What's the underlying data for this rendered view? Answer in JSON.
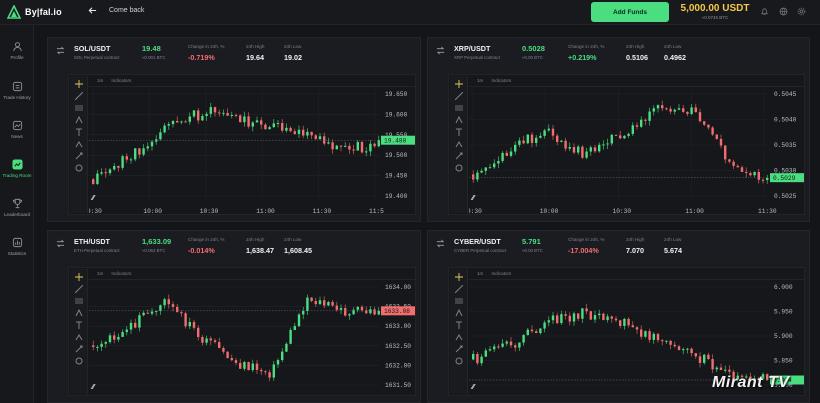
{
  "app": {
    "name": "By|fal.io",
    "back_label": "Come back",
    "add_funds_label": "Add Funds",
    "balance": "5,000.00 USDT",
    "balance_sub": "≈0.0745 BTC"
  },
  "sidebar": {
    "items": [
      {
        "label": "Profile",
        "icon": "user-icon",
        "active": false
      },
      {
        "label": "Trade History",
        "icon": "history-icon",
        "active": false
      },
      {
        "label": "News",
        "icon": "news-icon",
        "active": false
      },
      {
        "label": "Trading Room",
        "icon": "chart-icon",
        "active": true
      },
      {
        "label": "Leaderboard",
        "icon": "trophy-icon",
        "active": false
      },
      {
        "label": "Statistics",
        "icon": "stats-icon",
        "active": false
      }
    ]
  },
  "labels": {
    "change": "Change in 24h, %",
    "high": "24h High",
    "low": "24h Low",
    "interval": "1m",
    "indicators": "Indicators"
  },
  "colors": {
    "up": "#4ade80",
    "down": "#f26d6d",
    "accent": "#4ade80",
    "balance": "#f5c84c"
  },
  "panels": [
    {
      "symbol": "SOL/USDT",
      "sub": "SOL Perpetual contract",
      "price": "19.48",
      "price_sub": "≈0.001 BTC",
      "change": "-0.719%",
      "change_dir": "down",
      "high": "19.64",
      "low": "19.02",
      "chart": {
        "ticks": [
          "19.650",
          "19.600",
          "19.550",
          "19.500",
          "19.450",
          "19.400"
        ],
        "x_labels": [
          "9:30",
          "10:00",
          "10:30",
          "11:00",
          "11:30",
          "11:5"
        ],
        "last": "19.480",
        "last_dir": "up",
        "seed": 11,
        "trend": [
          0.85,
          0.6,
          0.25,
          0.15,
          0.3,
          0.35,
          0.55,
          0.5
        ]
      }
    },
    {
      "symbol": "XRP/USDT",
      "sub": "XRP Perpetual contract",
      "price": "0.5028",
      "price_sub": "≈0.00 BTC",
      "change": "+0.219%",
      "change_dir": "up",
      "high": "0.5106",
      "low": "0.4962",
      "chart": {
        "ticks": [
          "0.5045",
          "0.5040",
          "0.5035",
          "0.5030",
          "0.5025"
        ],
        "x_labels": [
          "9:30",
          "10:00",
          "10:30",
          "11:00",
          "11:30"
        ],
        "last": "0.5029",
        "last_dir": "up",
        "seed": 23,
        "trend": [
          0.8,
          0.55,
          0.35,
          0.6,
          0.4,
          0.15,
          0.15,
          0.7,
          0.85
        ]
      }
    },
    {
      "symbol": "ETH/USDT",
      "sub": "ETH Perpetual contract",
      "price": "1,633.09",
      "price_sub": "≈0.063 BTC",
      "change": "-0.014%",
      "change_dir": "down",
      "high": "1,638.47",
      "low": "1,608.45",
      "chart": {
        "ticks": [
          "1634.00",
          "1633.50",
          "1633.00",
          "1632.50",
          "1632.00",
          "1631.50"
        ],
        "x_labels": [],
        "last": "1633.08",
        "last_dir": "down",
        "seed": 37,
        "trend": [
          0.6,
          0.4,
          0.15,
          0.5,
          0.8,
          0.9,
          0.1,
          0.25,
          0.25
        ]
      }
    },
    {
      "symbol": "CYBER/USDT",
      "sub": "CYBER Perpetual contract",
      "price": "5.791",
      "price_sub": "≈0.00 BTC",
      "change": "-17.004%",
      "change_dir": "down",
      "high": "7.070",
      "low": "5.674",
      "chart": {
        "ticks": [
          "6.000",
          "5.950",
          "5.900",
          "5.850",
          "5.800"
        ],
        "x_labels": [],
        "last": "5.804",
        "last_dir": "up",
        "seed": 53,
        "trend": [
          0.75,
          0.6,
          0.35,
          0.25,
          0.35,
          0.55,
          0.7,
          0.9,
          0.95
        ]
      }
    }
  ],
  "watermark": "Mirant TV"
}
